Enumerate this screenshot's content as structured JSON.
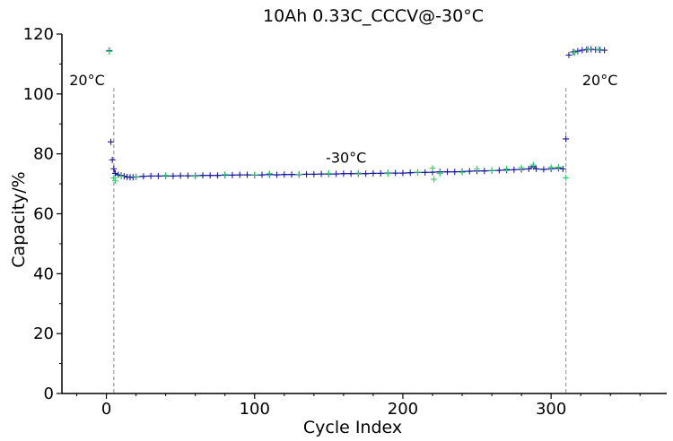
{
  "chart_data": {
    "type": "scatter",
    "title": "10Ah 0.33C_CCCV@-30°C",
    "xlabel": "Cycle Index",
    "ylabel": "Capacity/%",
    "xlim": [
      -30,
      378
    ],
    "ylim": [
      0,
      120
    ],
    "xticks": [
      0,
      100,
      200,
      300
    ],
    "yticks": [
      0,
      20,
      40,
      60,
      80,
      100,
      120
    ],
    "grid": false,
    "legend": "none",
    "annotations": [
      {
        "text": "20°C",
        "x": -25,
        "y": 103
      },
      {
        "text": "-30°C",
        "x": 148,
        "y": 77
      },
      {
        "text": "20°C",
        "x": 321,
        "y": 103
      }
    ],
    "dividers": [
      5,
      310
    ],
    "series": [
      {
        "color": "#1a1aa0",
        "marker": "+",
        "points": [
          [
            2,
            114.5
          ],
          [
            3,
            84
          ],
          [
            4,
            78
          ],
          [
            5,
            75
          ],
          [
            6,
            73.5
          ],
          [
            8,
            73
          ],
          [
            10,
            72.8
          ],
          [
            12,
            72.5
          ],
          [
            14,
            72.3
          ],
          [
            16,
            72.2
          ],
          [
            18,
            72.2
          ],
          [
            20,
            72.3
          ],
          [
            25,
            72.5
          ],
          [
            30,
            72.6
          ],
          [
            35,
            72.6
          ],
          [
            40,
            72.6
          ],
          [
            45,
            72.6
          ],
          [
            50,
            72.7
          ],
          [
            55,
            72.7
          ],
          [
            60,
            72.7
          ],
          [
            65,
            72.8
          ],
          [
            70,
            72.8
          ],
          [
            75,
            72.8
          ],
          [
            80,
            72.9
          ],
          [
            85,
            72.9
          ],
          [
            90,
            73
          ],
          [
            95,
            73
          ],
          [
            100,
            72.9
          ],
          [
            105,
            73
          ],
          [
            110,
            73.1
          ],
          [
            115,
            73
          ],
          [
            120,
            73.1
          ],
          [
            125,
            73.1
          ],
          [
            130,
            73.1
          ],
          [
            135,
            73.2
          ],
          [
            140,
            73.2
          ],
          [
            145,
            73.3
          ],
          [
            150,
            73.3
          ],
          [
            155,
            73.3
          ],
          [
            160,
            73.4
          ],
          [
            165,
            73.4
          ],
          [
            170,
            73.4
          ],
          [
            175,
            73.4
          ],
          [
            180,
            73.5
          ],
          [
            185,
            73.5
          ],
          [
            190,
            73.6
          ],
          [
            195,
            73.6
          ],
          [
            200,
            73.6
          ],
          [
            205,
            73.7
          ],
          [
            210,
            73.8
          ],
          [
            215,
            73.8
          ],
          [
            220,
            73.9
          ],
          [
            225,
            74
          ],
          [
            230,
            74
          ],
          [
            235,
            74
          ],
          [
            240,
            74.1
          ],
          [
            245,
            74.2
          ],
          [
            250,
            74.3
          ],
          [
            255,
            74.3
          ],
          [
            260,
            74.4
          ],
          [
            265,
            74.5
          ],
          [
            270,
            74.6
          ],
          [
            275,
            74.7
          ],
          [
            280,
            74.8
          ],
          [
            285,
            75
          ],
          [
            288,
            75.8
          ],
          [
            290,
            75
          ],
          [
            295,
            74.8
          ],
          [
            300,
            75
          ],
          [
            305,
            75.2
          ],
          [
            308,
            75
          ],
          [
            310,
            85
          ],
          [
            312,
            113
          ],
          [
            315,
            114
          ],
          [
            318,
            114.3
          ],
          [
            321,
            114.6
          ],
          [
            324,
            114.8
          ],
          [
            327,
            114.9
          ],
          [
            330,
            114.8
          ],
          [
            333,
            114.7
          ],
          [
            336,
            114.6
          ]
        ]
      },
      {
        "color": "#33cc66",
        "marker": "+",
        "points": [
          [
            2,
            114.2
          ],
          [
            5,
            72
          ],
          [
            6,
            71
          ],
          [
            10,
            72.5
          ],
          [
            20,
            72.4
          ],
          [
            40,
            72.8
          ],
          [
            60,
            72.5
          ],
          [
            80,
            73.1
          ],
          [
            100,
            73
          ],
          [
            110,
            73.4
          ],
          [
            130,
            73.2
          ],
          [
            150,
            73.5
          ],
          [
            170,
            73.6
          ],
          [
            190,
            73.4
          ],
          [
            210,
            73.9
          ],
          [
            220,
            75.2
          ],
          [
            221,
            71.5
          ],
          [
            225,
            73.5
          ],
          [
            240,
            73.8
          ],
          [
            250,
            75
          ],
          [
            260,
            74.5
          ],
          [
            270,
            75
          ],
          [
            280,
            75.4
          ],
          [
            288,
            76.3
          ],
          [
            300,
            75.5
          ],
          [
            305,
            75.6
          ],
          [
            310,
            72
          ],
          [
            316,
            113.8
          ],
          [
            325,
            115
          ],
          [
            332,
            114.9
          ]
        ]
      }
    ]
  }
}
